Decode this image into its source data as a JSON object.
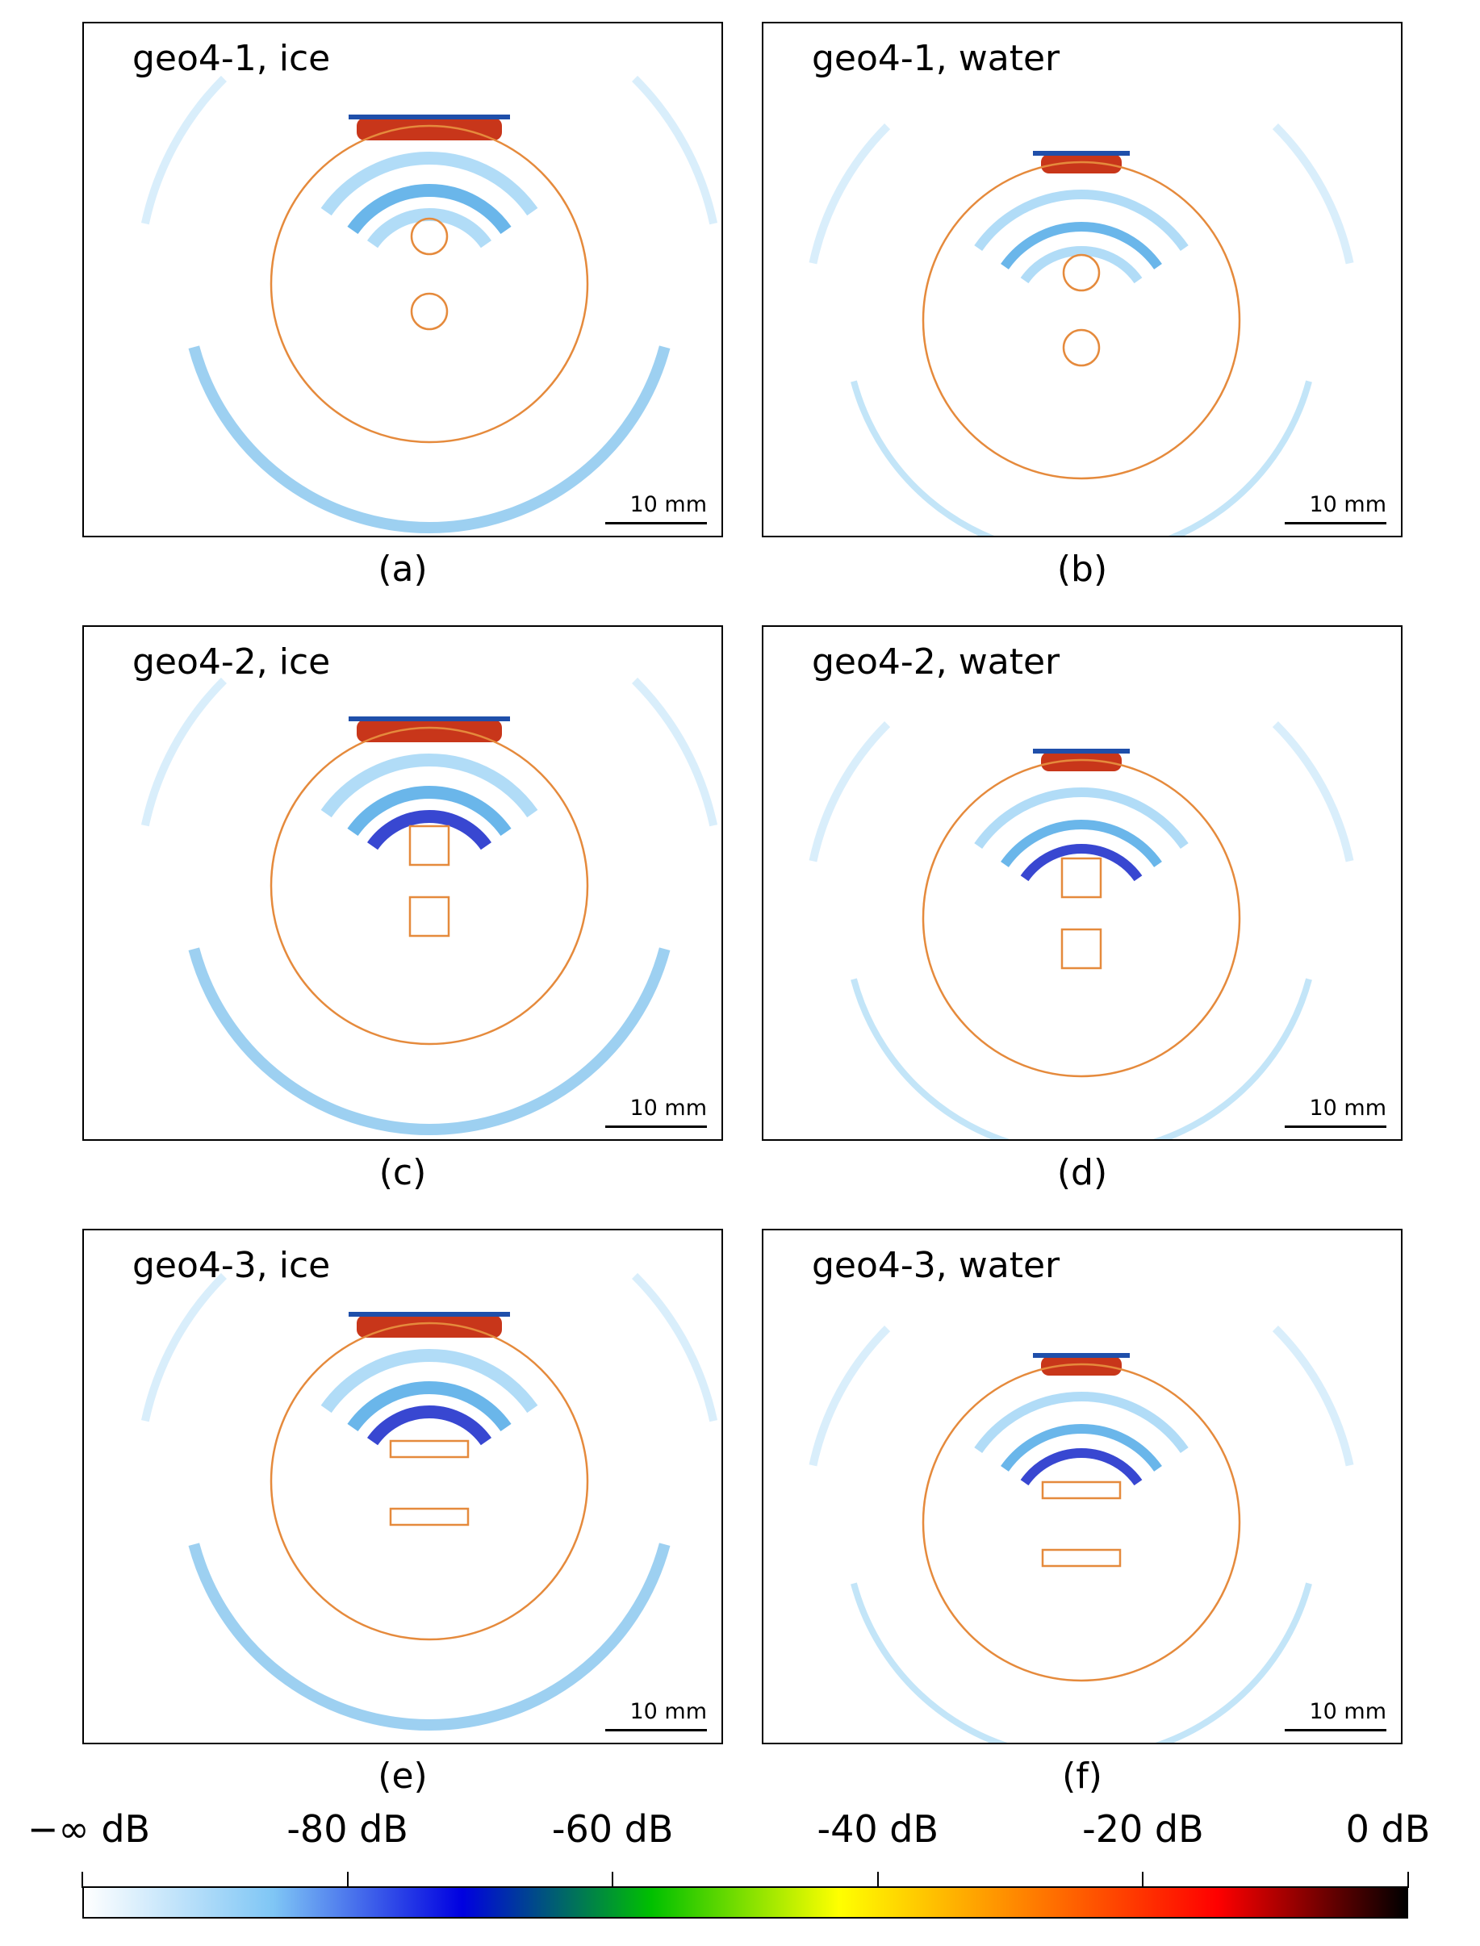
{
  "chart_data": {
    "type": "heatmap",
    "description_of_grid": "3 rows x 2 columns of simulated field magnitude maps",
    "panels": [
      {
        "title": "geo4-1, ice",
        "caption": "(a)",
        "medium": "ice",
        "geometry": "circles"
      },
      {
        "title": "geo4-1, water",
        "caption": "(b)",
        "medium": "water",
        "geometry": "circles"
      },
      {
        "title": "geo4-2, ice",
        "caption": "(c)",
        "medium": "ice",
        "geometry": "squares"
      },
      {
        "title": "geo4-2, water",
        "caption": "(d)",
        "medium": "water",
        "geometry": "squares"
      },
      {
        "title": "geo4-3, ice",
        "caption": "(e)",
        "medium": "ice",
        "geometry": "slabs"
      },
      {
        "title": "geo4-3, water",
        "caption": "(f)",
        "medium": "water",
        "geometry": "slabs"
      }
    ],
    "scale_bar_label": "10 mm",
    "colorbar": {
      "tick_labels": [
        "−∞ dB",
        "-80 dB",
        "-60 dB",
        "-40 dB",
        "-20 dB",
        "0 dB"
      ],
      "tick_values": [
        -100,
        -80,
        -60,
        -40,
        -20,
        0
      ],
      "colors": [
        "#ffffff",
        "#7fc6f5",
        "#0000e0",
        "#00c000",
        "#ffff00",
        "#ff8000",
        "#ff0000",
        "#000000"
      ]
    },
    "outline_color": "#e58a3c"
  }
}
